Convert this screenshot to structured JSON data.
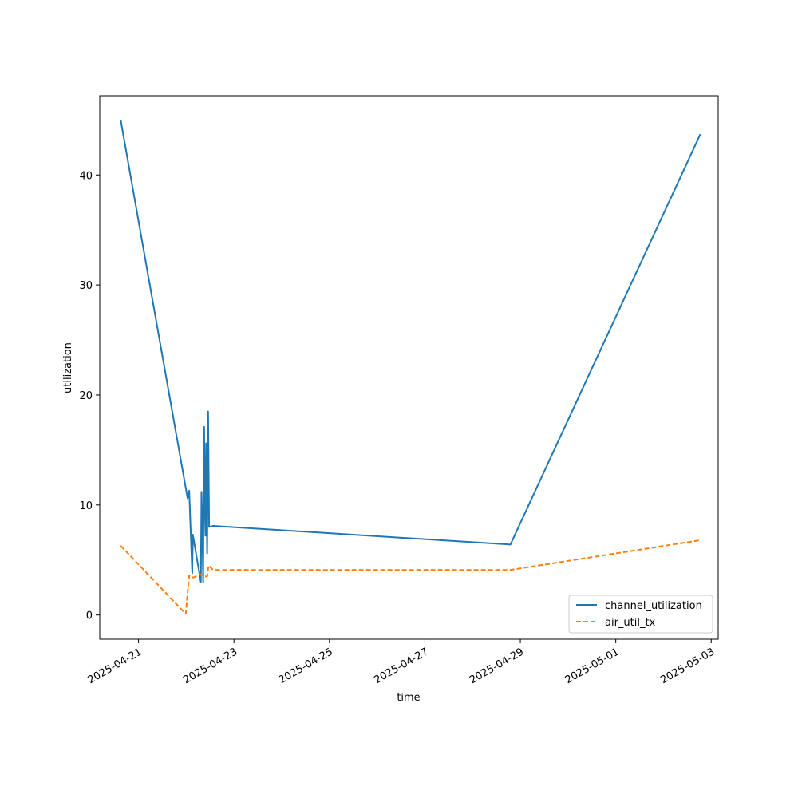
{
  "chart_data": {
    "type": "line",
    "xlabel": "time",
    "ylabel": "utilization",
    "grid": false,
    "legend_position": "lower-right",
    "xlim": [
      "2025-04-20T04:30",
      "2025-05-03T03:30"
    ],
    "ylim": [
      -2.2,
      47.2
    ],
    "x_ticks": [
      "2025-04-21",
      "2025-04-23",
      "2025-04-25",
      "2025-04-27",
      "2025-04-29",
      "2025-05-01",
      "2025-05-03"
    ],
    "y_ticks": [
      0,
      10,
      20,
      30,
      40
    ],
    "series": [
      {
        "name": "channel_utilization",
        "color": "#1f77b4",
        "style": "solid",
        "points": [
          [
            "2025-04-20T15:00",
            45.0
          ],
          [
            "2025-04-22T00:40",
            10.6
          ],
          [
            "2025-04-22T01:30",
            11.3
          ],
          [
            "2025-04-22T03:00",
            3.8
          ],
          [
            "2025-04-22T03:20",
            7.3
          ],
          [
            "2025-04-22T07:20",
            3.0
          ],
          [
            "2025-04-22T07:40",
            11.2
          ],
          [
            "2025-04-22T08:00",
            8.9
          ],
          [
            "2025-04-22T08:30",
            3.0
          ],
          [
            "2025-04-22T08:45",
            11.6
          ],
          [
            "2025-04-22T09:00",
            17.1
          ],
          [
            "2025-04-22T09:20",
            9.8
          ],
          [
            "2025-04-22T09:40",
            7.2
          ],
          [
            "2025-04-22T10:00",
            15.6
          ],
          [
            "2025-04-22T10:30",
            5.6
          ],
          [
            "2025-04-22T11:00",
            18.5
          ],
          [
            "2025-04-22T11:30",
            8.0
          ],
          [
            "2025-04-22T13:30",
            8.1
          ],
          [
            "2025-04-28T19:00",
            6.4
          ],
          [
            "2025-05-02T18:30",
            43.7
          ]
        ]
      },
      {
        "name": "air_util_tx",
        "color": "#ff7f0e",
        "style": "dashed",
        "points": [
          [
            "2025-04-20T15:00",
            6.3
          ],
          [
            "2025-04-21T23:45",
            0.1
          ],
          [
            "2025-04-22T01:30",
            3.6
          ],
          [
            "2025-04-22T03:30",
            3.4
          ],
          [
            "2025-04-22T07:00",
            3.7
          ],
          [
            "2025-04-22T09:00",
            3.5
          ],
          [
            "2025-04-22T10:30",
            3.5
          ],
          [
            "2025-04-22T11:15",
            4.5
          ],
          [
            "2025-04-22T13:30",
            4.1
          ],
          [
            "2025-04-28T19:00",
            4.1
          ],
          [
            "2025-05-02T18:30",
            6.8
          ]
        ]
      }
    ]
  }
}
